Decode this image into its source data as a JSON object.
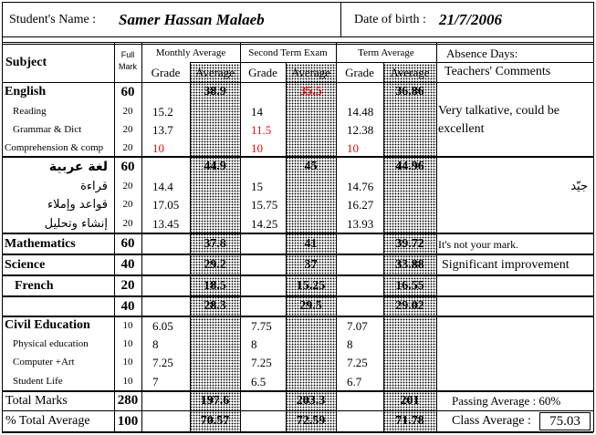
{
  "header": {
    "name_label": "Student's Name  :",
    "name_value": "Samer Hassan Malaeb",
    "dob_label": "Date of birth :",
    "dob_value": "21/7/2006"
  },
  "columns": {
    "subject": "Subject",
    "full_mark": "Full\nMark",
    "monthly": "Monthly Average",
    "second_term": "Second Term Exam",
    "term_avg": "Term Average",
    "absence": "Absence Days:",
    "teachers": "Teachers' Comments",
    "grade": "Grade",
    "average": "Average"
  },
  "colors": {
    "grade_alert": "#e01010"
  },
  "rows": [
    {
      "subject": "English",
      "main": true,
      "full": "60",
      "m_avg": "38.9",
      "s_avg": "35.5",
      "s_avg_red": true,
      "t_avg": "36.86"
    },
    {
      "subject": "Reading",
      "full": "20",
      "m_grade": "15.2",
      "s_grade": "14",
      "t_grade": "14.48",
      "comment": "Very talkative, could be"
    },
    {
      "subject": "Grammar & Dict",
      "full": "20",
      "m_grade": "13.7",
      "s_grade": "11.5",
      "s_red": true,
      "t_grade": "12.38",
      "comment": "excellent"
    },
    {
      "subject": "Comprehension & comp",
      "full": "20",
      "m_grade": "10",
      "m_red": true,
      "s_grade": "10",
      "s_red": true,
      "t_grade": "10",
      "t_red": true
    },
    {
      "subject": "لغة عربية",
      "main": true,
      "arabic": true,
      "full": "60",
      "m_avg": "44.9",
      "s_avg": "45",
      "t_avg": "44.96"
    },
    {
      "subject": "قراءة",
      "arabic": true,
      "full": "20",
      "m_grade": "14.4",
      "s_grade": "15",
      "t_grade": "14.76",
      "comment": "جيّد",
      "comment_rtl": true
    },
    {
      "subject": "قواعد وإملاء",
      "arabic": true,
      "full": "20",
      "m_grade": "17.05",
      "s_grade": "15.75",
      "t_grade": "16.27"
    },
    {
      "subject": "إنشاء وتحليل",
      "arabic": true,
      "full": "20",
      "m_grade": "13.45",
      "s_grade": "14.25",
      "t_grade": "13.93"
    },
    {
      "subject": "Mathematics",
      "main": true,
      "full": "60",
      "m_avg": "37.8",
      "s_avg": "41",
      "t_avg": "39.72",
      "comment": "It's not your mark."
    },
    {
      "subject": "Science",
      "main": true,
      "full": "40",
      "m_avg": "29.2",
      "s_avg": "37",
      "t_avg": "33.88",
      "comment": "Significant improvement"
    },
    {
      "subject": "French",
      "main": true,
      "full": "20",
      "m_avg": "18.5",
      "s_avg": "15.25",
      "t_avg": "16.55"
    },
    {
      "subject": "",
      "main": true,
      "full": "40",
      "m_avg": "28.3",
      "s_avg": "29.5",
      "t_avg": "29.02"
    },
    {
      "subject": "Civil Education",
      "main": true,
      "small_full": true,
      "full": "10",
      "m_grade": "6.05",
      "s_grade": "7.75",
      "t_grade": "7.07"
    },
    {
      "subject": "Physical education",
      "full": "10",
      "m_grade": "8",
      "s_grade": "8",
      "t_grade": "8"
    },
    {
      "subject": "Computer +Art",
      "full": "10",
      "m_grade": "7.25",
      "s_grade": "7.25",
      "t_grade": "7.25"
    },
    {
      "subject": "Student Life",
      "full": "10",
      "m_grade": "7",
      "s_grade": "6.5",
      "t_grade": "6.7"
    }
  ],
  "totals": {
    "total_label": "Total Marks",
    "total_full": "280",
    "total_m": "197.6",
    "total_s": "203.3",
    "total_t": "201",
    "passing": "Passing Average : 60%",
    "pct_label": "% Total Average",
    "pct_full": "100",
    "pct_m": "70.57",
    "pct_s": "72.59",
    "pct_t": "71.78",
    "class_label": "Class Average :",
    "class_value": "75.03"
  }
}
